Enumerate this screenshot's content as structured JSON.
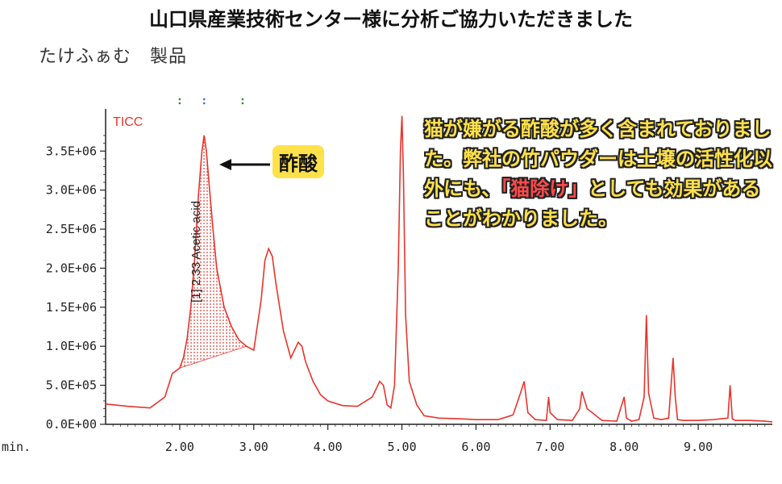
{
  "banner": {
    "title": "山口県産業技術センター様に分析ご協力いただきました",
    "subtitle": "たけふぁむ　製品"
  },
  "callout": {
    "label": "酢酸"
  },
  "note": {
    "part1": "猫が嫌がる酢酸が多く含まれておりました。弊社の竹パウダーは土壌の活性化以外にも、",
    "highlight": "「猫除け」",
    "part2": "としても効果があることがわかりました。"
  },
  "colors": {
    "trace": "#e8342c",
    "highlight": "#ffe14a",
    "accent_text": "#ff4a4a"
  },
  "chart_data": {
    "type": "line",
    "legend": "TICC",
    "xlabel": "min.",
    "xlim": [
      1.0,
      10.0
    ],
    "ylim": [
      0,
      4000000
    ],
    "yticks": [
      "0.0E+00",
      "5.0E+05",
      "1.0E+06",
      "1.5E+06",
      "2.0E+06",
      "2.5E+06",
      "3.0E+06",
      "3.5E+06"
    ],
    "xticks": [
      "2.00",
      "3.00",
      "4.00",
      "5.00",
      "6.00",
      "7.00",
      "8.00",
      "9.00"
    ],
    "peak_annotation": "[1] 2.33 Acetic acid",
    "series": [
      {
        "x": [
          1.0,
          1.3,
          1.6,
          1.8,
          1.9,
          2.0,
          2.05,
          2.1,
          2.15,
          2.2,
          2.25,
          2.3,
          2.33,
          2.36,
          2.4,
          2.45,
          2.5,
          2.6,
          2.7,
          2.8,
          2.9,
          3.0,
          3.1,
          3.15,
          3.2,
          3.25,
          3.3,
          3.4,
          3.5,
          3.6,
          3.65,
          3.7,
          3.8,
          3.9,
          4.0,
          4.2,
          4.4,
          4.6,
          4.7,
          4.75,
          4.8,
          4.85,
          4.9,
          4.95,
          4.98,
          5.0,
          5.02,
          5.05,
          5.1,
          5.2,
          5.3,
          5.5,
          5.8,
          6.0,
          6.3,
          6.5,
          6.6,
          6.65,
          6.7,
          6.8,
          6.95,
          6.98,
          7.0,
          7.1,
          7.3,
          7.4,
          7.43,
          7.5,
          7.7,
          7.9,
          8.0,
          8.03,
          8.1,
          8.2,
          8.27,
          8.3,
          8.33,
          8.4,
          8.5,
          8.6,
          8.66,
          8.69,
          8.72,
          8.8,
          9.0,
          9.2,
          9.4,
          9.43,
          9.46,
          9.5,
          9.7,
          9.9,
          10.0
        ],
        "y": [
          260000,
          230000,
          210000,
          350000,
          650000,
          720000,
          850000,
          1100000,
          1500000,
          2100000,
          2900000,
          3500000,
          3700000,
          3500000,
          3050000,
          2500000,
          2000000,
          1500000,
          1250000,
          1080000,
          1000000,
          950000,
          1600000,
          2100000,
          2250000,
          2150000,
          1800000,
          1200000,
          850000,
          1050000,
          1000000,
          800000,
          550000,
          380000,
          300000,
          240000,
          230000,
          350000,
          550000,
          500000,
          250000,
          210000,
          500000,
          2000000,
          3500000,
          3950000,
          3200000,
          1400000,
          550000,
          250000,
          110000,
          80000,
          70000,
          60000,
          60000,
          120000,
          400000,
          550000,
          150000,
          60000,
          50000,
          350000,
          150000,
          60000,
          50000,
          200000,
          420000,
          200000,
          50000,
          40000,
          350000,
          80000,
          40000,
          60000,
          350000,
          1400000,
          400000,
          80000,
          60000,
          80000,
          850000,
          350000,
          60000,
          50000,
          50000,
          60000,
          80000,
          500000,
          70000,
          50000,
          50000,
          40000,
          30000
        ],
        "fill_region": [
          2.0,
          2.95
        ]
      }
    ]
  }
}
